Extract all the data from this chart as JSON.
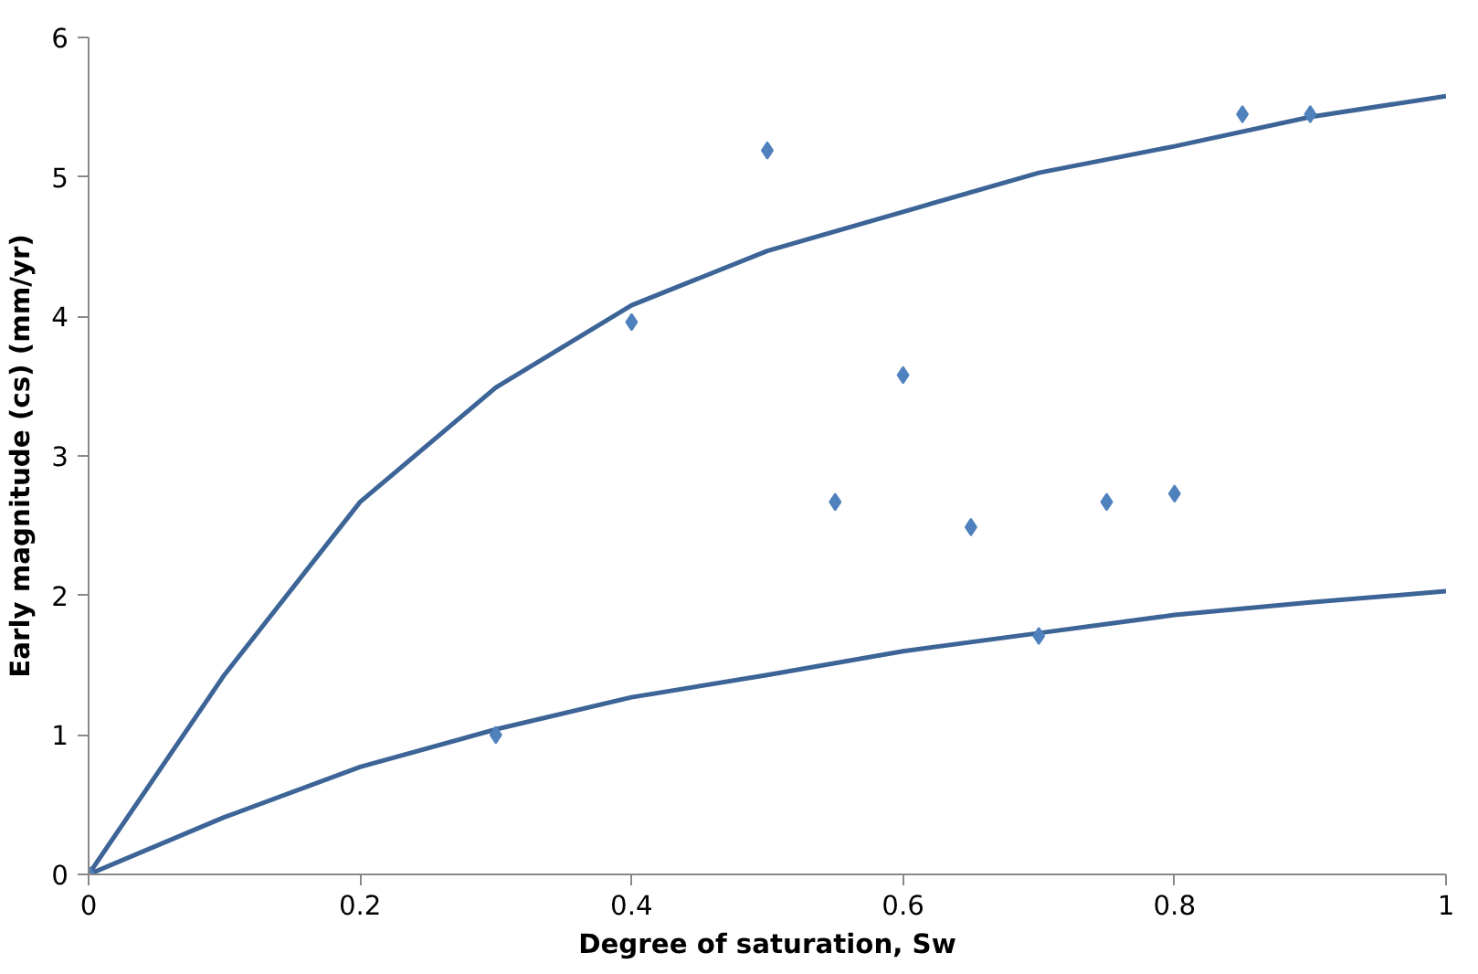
{
  "chart_data": {
    "type": "scatter",
    "xlabel": "Degree of saturation, Sw",
    "ylabel": "Early magnitude (cs) (mm/yr)",
    "xlim": [
      0,
      1
    ],
    "ylim": [
      0,
      6
    ],
    "xticks": [
      0,
      0.2,
      0.4,
      0.6,
      0.8,
      1
    ],
    "yticks": [
      0,
      1,
      2,
      3,
      4,
      5,
      6
    ],
    "grid": false,
    "marker": "diamond",
    "series": [
      {
        "color": "#4f81bd",
        "x": [
          0,
          0.3,
          0.4,
          0.5,
          0.55,
          0.6,
          0.65,
          0.7,
          0.75,
          0.8,
          0.85,
          0.9
        ],
        "values": [
          0,
          1.0,
          3.96,
          5.19,
          2.67,
          3.58,
          2.49,
          1.71,
          2.67,
          2.73,
          5.45,
          5.45
        ]
      },
      {
        "type": "line",
        "color": "#3c6496",
        "line_style": "solid",
        "marker": "none",
        "x": [
          0,
          0.1,
          0.2,
          0.3,
          0.4,
          0.5,
          0.6,
          0.7,
          0.8,
          0.9,
          1
        ],
        "values": [
          0,
          1.43,
          2.67,
          3.49,
          4.08,
          4.47,
          4.75,
          5.03,
          5.22,
          5.43,
          5.58
        ]
      },
      {
        "type": "line",
        "color": "#3c6496",
        "line_style": "solid",
        "marker": "none",
        "x": [
          0,
          0.1,
          0.2,
          0.3,
          0.4,
          0.5,
          0.6,
          0.7,
          0.8,
          0.9,
          1
        ],
        "values": [
          0,
          0.41,
          0.77,
          1.04,
          1.27,
          1.43,
          1.6,
          1.73,
          1.86,
          1.95,
          2.03
        ]
      }
    ]
  }
}
